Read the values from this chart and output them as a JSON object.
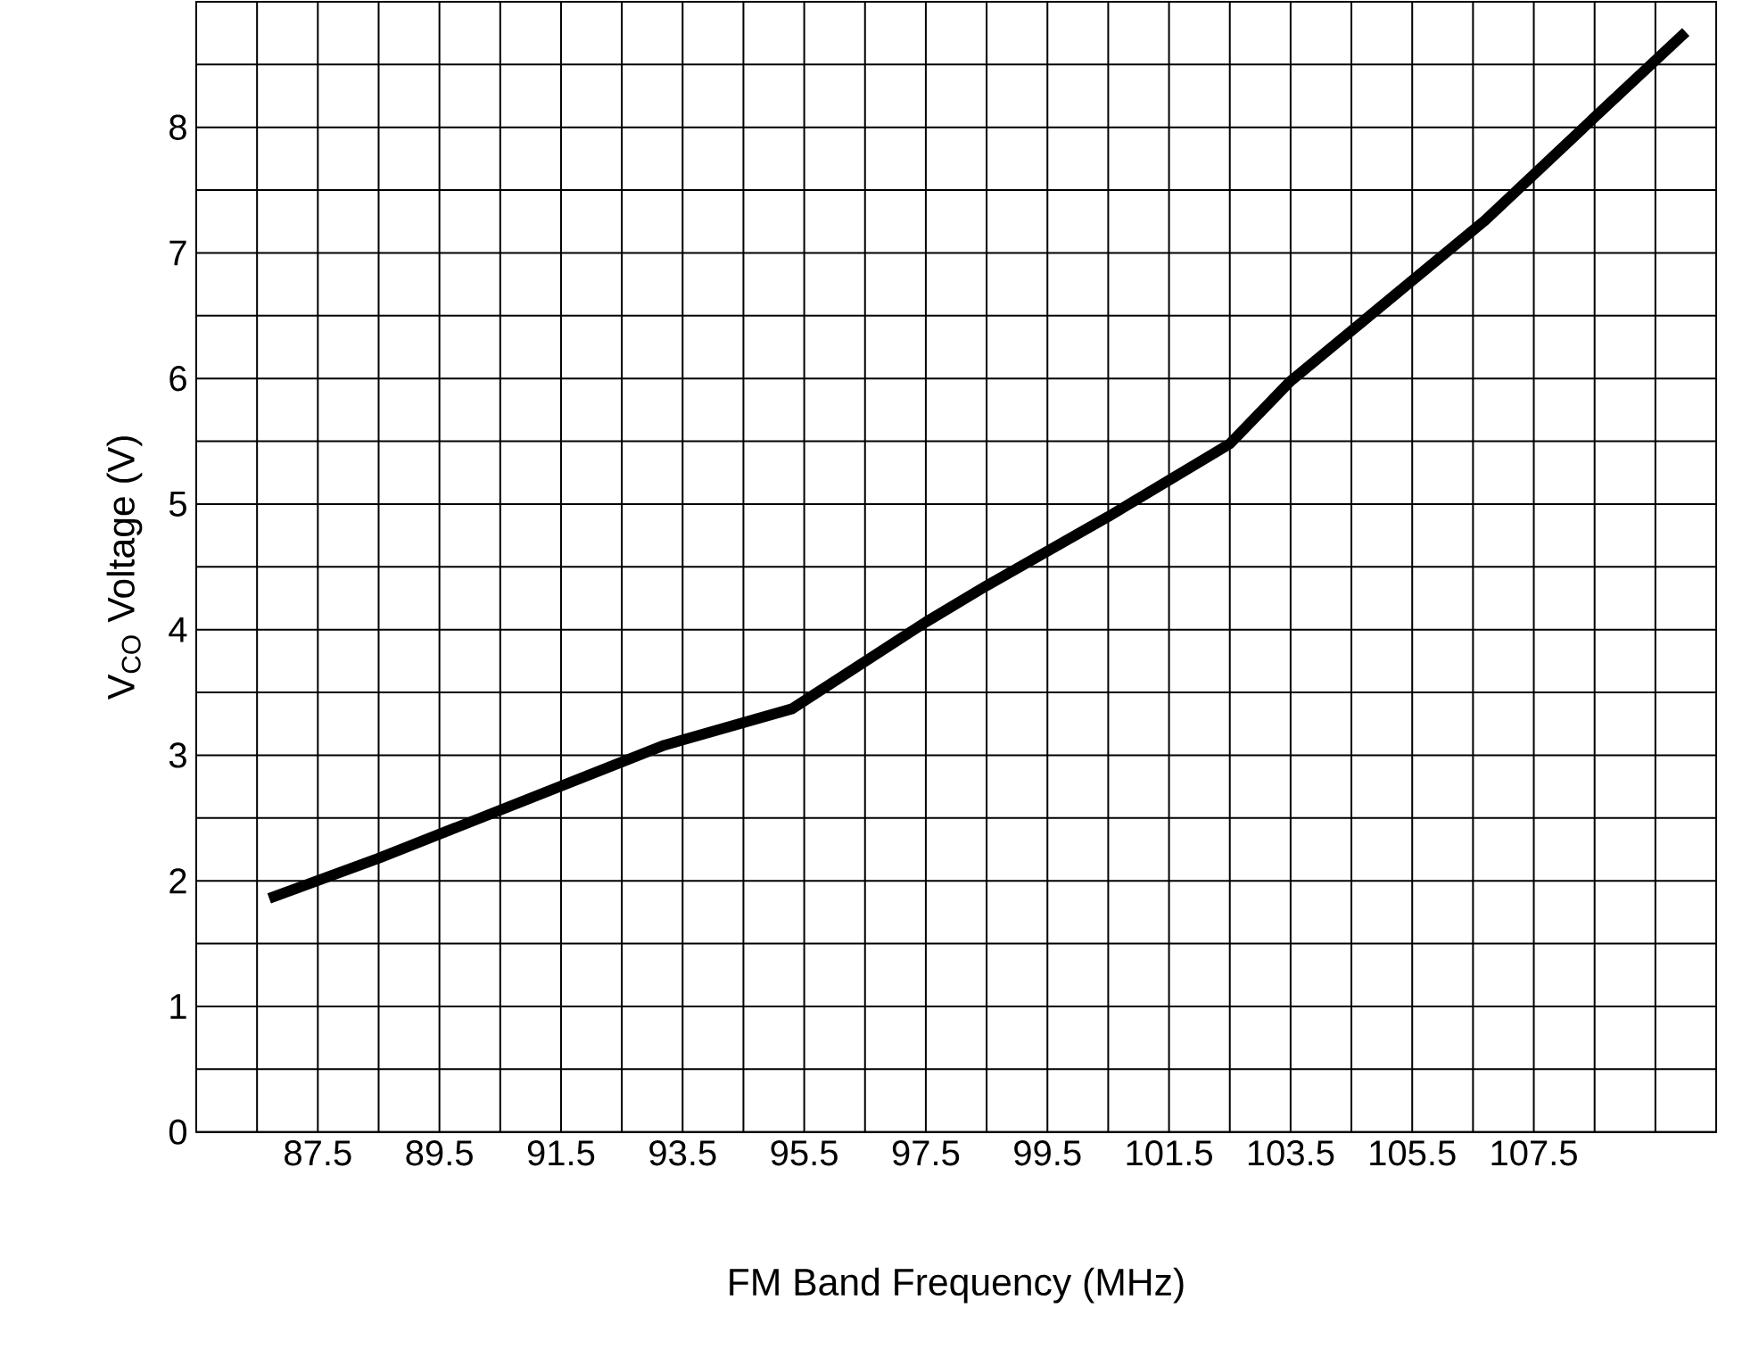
{
  "chart_data": {
    "type": "line",
    "xlabel": "FM Band Frequency (MHz)",
    "ylabel": "V$_{CO}$ Voltage (V)",
    "xlim": [
      85.5,
      110.5
    ],
    "ylim": [
      0,
      9
    ],
    "xticks": [
      {
        "value": 86.5,
        "label": null
      },
      87.5,
      {
        "value": 88.5,
        "label": null
      },
      89.5,
      {
        "value": 90.5,
        "label": null
      },
      91.5,
      {
        "value": 92.5,
        "label": null
      },
      93.5,
      {
        "value": 94.5,
        "label": null
      },
      95.5,
      {
        "value": 96.5,
        "label": null
      },
      97.5,
      {
        "value": 98.5,
        "label": null
      },
      99.5,
      {
        "value": 100.5,
        "label": null
      },
      101.5,
      {
        "value": 102.5,
        "label": null
      },
      103.5,
      {
        "value": 104.5,
        "label": null
      },
      105.5,
      {
        "value": 106.5,
        "label": null
      },
      107.5,
      {
        "value": 108.5,
        "label": null
      },
      {
        "value": 109.5,
        "label": null
      }
    ],
    "yticks": [
      0,
      {
        "value": 0.5,
        "label": null
      },
      1,
      {
        "value": 1.5,
        "label": null
      },
      2,
      {
        "value": 2.5,
        "label": null
      },
      3,
      {
        "value": 3.5,
        "label": null
      },
      4,
      {
        "value": 4.5,
        "label": null
      },
      5,
      {
        "value": 5.5,
        "label": null
      },
      6,
      {
        "value": 6.5,
        "label": null
      },
      7,
      {
        "value": 7.5,
        "label": null
      },
      8,
      {
        "value": 8.5,
        "label": null
      },
      {
        "value": 9,
        "label": null
      }
    ],
    "grid": true,
    "series": [
      {
        "color": "#000000",
        "x": [
          86.7,
          88.5,
          93.2,
          95.3,
          97.5,
          98.5,
          100.5,
          102.5,
          103.5,
          106.7,
          108.5,
          110.0
        ],
        "values": [
          1.86,
          2.18,
          3.08,
          3.37,
          4.06,
          4.35,
          4.9,
          5.48,
          5.98,
          7.26,
          8.08,
          8.76
        ]
      }
    ]
  }
}
